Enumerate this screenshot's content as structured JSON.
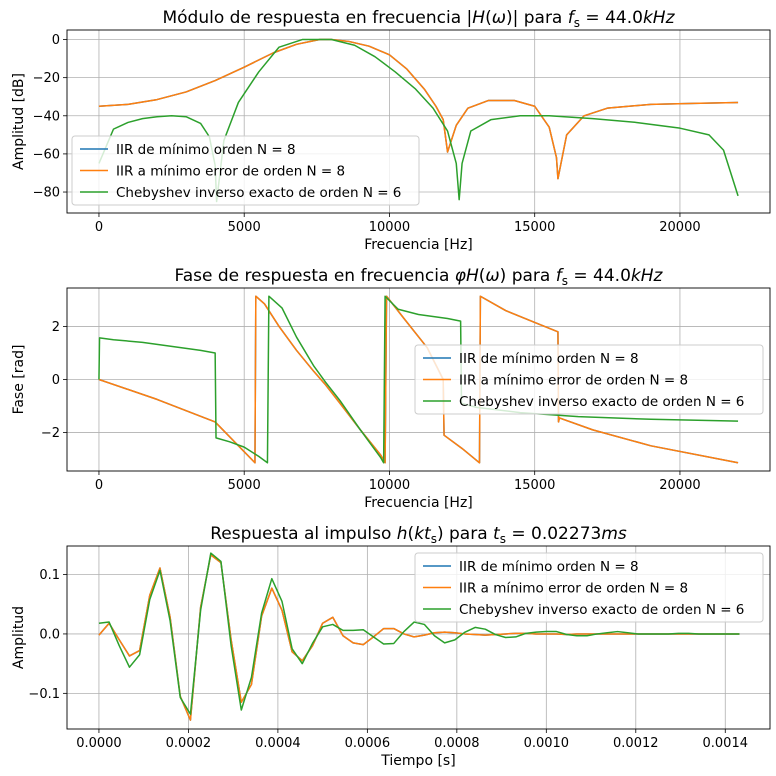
{
  "colors": {
    "blue": "#1f77b4",
    "orange": "#ff7f0e",
    "green": "#2ca02c",
    "grid": "#b0b0b0"
  },
  "series_names": [
    "IIR de mínimo orden N = 8",
    "IIR a mínimo error de orden N = 8",
    "Chebyshev inverso exacto de orden N = 6"
  ],
  "chart_data": [
    {
      "type": "line",
      "title": "Módulo de respuesta en frecuencia |H(ω)| para f_s = 44.0kHz",
      "title_parts": [
        "Módulo de respuesta en frecuencia |",
        "H",
        "(",
        "ω",
        ")| para ",
        "f",
        "s",
        " = 44.0",
        "kHz"
      ],
      "xlabel": "Frecuencia [Hz]",
      "ylabel": "Amplitud [dB]",
      "xlim": [
        -1100,
        23100
      ],
      "ylim": [
        -91,
        5
      ],
      "xticks": [
        0,
        5000,
        10000,
        15000,
        20000
      ],
      "xtick_labels": [
        "0",
        "5000",
        "10000",
        "15000",
        "20000"
      ],
      "yticks": [
        0,
        -20,
        -40,
        -60,
        -80
      ],
      "ytick_labels": [
        "0",
        "−20",
        "−40",
        "−60",
        "−80"
      ],
      "grid": true,
      "legend_location": "lower-left",
      "series": [
        {
          "name": "IIR de mínimo orden N = 8",
          "color": "blue",
          "x": [
            0,
            1000,
            2000,
            3000,
            4000,
            5000,
            6000,
            6800,
            7600,
            8000,
            8600,
            9300,
            10000,
            10600,
            11200,
            11600,
            11850,
            12000,
            12300,
            12700,
            13400,
            14300,
            15000,
            15500,
            15750,
            15800,
            16100,
            16700,
            17500,
            19000,
            20500,
            22000
          ],
          "y": [
            -35,
            -34,
            -31.5,
            -27.5,
            -21.5,
            -14.5,
            -7,
            -2.5,
            0,
            0,
            -1,
            -3.5,
            -8,
            -15.5,
            -26,
            -35,
            -42,
            -59,
            -45,
            -36,
            -32,
            -32,
            -35,
            -46,
            -62,
            -73,
            -50,
            -40,
            -36,
            -34,
            -33.5,
            -33
          ]
        },
        {
          "name": "IIR a mínimo error de orden N = 8",
          "color": "orange",
          "x": [
            0,
            1000,
            2000,
            3000,
            4000,
            5000,
            6000,
            6800,
            7600,
            8000,
            8600,
            9300,
            10000,
            10600,
            11200,
            11600,
            11850,
            12000,
            12300,
            12700,
            13400,
            14300,
            15000,
            15500,
            15750,
            15800,
            16100,
            16700,
            17500,
            19000,
            20500,
            22000
          ],
          "y": [
            -35,
            -34,
            -31.5,
            -27.5,
            -21.5,
            -14.5,
            -7,
            -2.5,
            0,
            0,
            -1,
            -3.5,
            -8,
            -15.5,
            -26,
            -35,
            -42,
            -59,
            -45,
            -36,
            -32,
            -32,
            -35,
            -46,
            -62,
            -73,
            -50,
            -40,
            -36,
            -34,
            -33.5,
            -33
          ]
        },
        {
          "name": "Chebyshev inverso exacto de orden N = 6",
          "color": "green",
          "x": [
            0,
            500,
            1000,
            1500,
            2000,
            2500,
            3000,
            3500,
            3800,
            4000,
            4050,
            4300,
            4800,
            5500,
            6200,
            7000,
            8000,
            8800,
            9500,
            10200,
            10900,
            11500,
            12000,
            12300,
            12400,
            12500,
            12800,
            13500,
            14500,
            15500,
            17000,
            18500,
            20000,
            21000,
            21500,
            22000
          ],
          "y": [
            -65,
            -47,
            -43.5,
            -41.5,
            -40.5,
            -40,
            -40.5,
            -44,
            -51,
            -66,
            -85,
            -53,
            -33,
            -17,
            -4,
            0,
            0,
            -3,
            -9,
            -17,
            -26,
            -36,
            -48,
            -65,
            -84,
            -65,
            -48,
            -42,
            -40,
            -40,
            -41.5,
            -43.5,
            -46.5,
            -50,
            -58,
            -82
          ]
        }
      ]
    },
    {
      "type": "line",
      "title": "Fase de respuesta en frecuencia φH(ω) para f_s = 44.0kHz",
      "title_parts": [
        "Fase de respuesta en frecuencia ",
        "φH",
        "(",
        "ω",
        ") para ",
        "f",
        "s",
        " = 44.0",
        "kHz"
      ],
      "xlabel": "Frecuencia [Hz]",
      "ylabel": "Fase [rad]",
      "xlim": [
        -1100,
        23100
      ],
      "ylim": [
        -3.45,
        3.45
      ],
      "xticks": [
        0,
        5000,
        10000,
        15000,
        20000
      ],
      "xtick_labels": [
        "0",
        "5000",
        "10000",
        "15000",
        "20000"
      ],
      "yticks": [
        2,
        0,
        -2
      ],
      "ytick_labels": [
        "2",
        "0",
        "−2"
      ],
      "grid": true,
      "legend_location": "center-right",
      "series": [
        {
          "name": "IIR de mínimo orden N = 8",
          "color": "blue",
          "x": [
            0,
            2000,
            4000,
            5370,
            5400,
            5700,
            6200,
            6800,
            7400,
            7800,
            8300,
            9000,
            9700,
            9850,
            9900,
            10500,
            11300,
            11850,
            11880,
            12500,
            13100,
            13130,
            14000,
            15000,
            15800,
            15820,
            15850,
            17000,
            19000,
            22000
          ],
          "y": [
            0,
            -0.75,
            -1.6,
            -3.14,
            3.14,
            2.85,
            2.0,
            1.1,
            0.3,
            -0.2,
            -0.9,
            -1.9,
            -2.85,
            -3.14,
            3.14,
            2.3,
            1.2,
            0.0,
            -2.1,
            -2.6,
            -3.14,
            3.14,
            2.6,
            2.15,
            1.8,
            -1.6,
            -1.45,
            -1.9,
            -2.5,
            -3.14
          ]
        },
        {
          "name": "IIR a mínimo error de orden N = 8",
          "color": "orange",
          "x": [
            0,
            2000,
            4000,
            5370,
            5400,
            5700,
            6200,
            6800,
            7400,
            7800,
            8300,
            9000,
            9700,
            9850,
            9900,
            10500,
            11300,
            11850,
            11880,
            12500,
            13100,
            13130,
            14000,
            15000,
            15800,
            15820,
            15850,
            17000,
            19000,
            22000
          ],
          "y": [
            0,
            -0.75,
            -1.6,
            -3.14,
            3.14,
            2.85,
            2.0,
            1.1,
            0.3,
            -0.2,
            -0.9,
            -1.9,
            -2.85,
            -3.14,
            3.14,
            2.3,
            1.2,
            0.0,
            -2.1,
            -2.6,
            -3.14,
            3.14,
            2.6,
            2.15,
            1.8,
            -1.6,
            -1.45,
            -1.9,
            -2.5,
            -3.14
          ]
        },
        {
          "name": "Chebyshev inverso exacto de orden N = 6",
          "color": "green",
          "x": [
            0,
            20,
            500,
            1500,
            2500,
            3500,
            4000,
            4030,
            4500,
            5000,
            5500,
            5800,
            5850,
            6300,
            6800,
            7400,
            7800,
            8300,
            9000,
            9700,
            9800,
            9850,
            10300,
            11000,
            12000,
            12450,
            12480,
            13000,
            14500,
            16500,
            19000,
            22000
          ],
          "y": [
            0,
            1.57,
            1.5,
            1.4,
            1.25,
            1.1,
            1.0,
            -2.2,
            -2.35,
            -2.55,
            -2.9,
            -3.14,
            3.14,
            2.7,
            1.6,
            0.5,
            -0.1,
            -0.8,
            -1.9,
            -2.95,
            -3.14,
            3.14,
            2.65,
            2.45,
            2.3,
            2.2,
            -0.9,
            -1.05,
            -1.25,
            -1.4,
            -1.5,
            -1.57
          ]
        }
      ]
    },
    {
      "type": "line",
      "title": "Respuesta al impulso h(kt_s) para t_s = 0.02273ms",
      "title_parts": [
        "Respuesta al impulso ",
        "h",
        "(",
        "kt",
        "s",
        ") para ",
        "t",
        "s",
        " = 0.02273",
        "ms"
      ],
      "xlabel": "Tiempo [s]",
      "ylabel": "Amplitud",
      "xlim": [
        -7.14e-05,
        0.0015
      ],
      "ylim": [
        -0.16,
        0.148
      ],
      "xticks": [
        0,
        0.0002,
        0.0004,
        0.0006,
        0.0008,
        0.001,
        0.0012,
        0.0014
      ],
      "xtick_labels": [
        "0.0000",
        "0.0002",
        "0.0004",
        "0.0006",
        "0.0008",
        "0.0010",
        "0.0012",
        "0.0014"
      ],
      "yticks": [
        0.1,
        0,
        -0.1
      ],
      "ytick_labels": [
        "0.1",
        "0.0",
        "−0.1"
      ],
      "grid": true,
      "legend_location": "upper-right",
      "series": [
        {
          "name": "IIR de mínimo orden N = 8",
          "color": "blue",
          "x": [
            0,
            2.27e-05,
            4.55e-05,
            6.82e-05,
            9.09e-05,
            0.0001136,
            0.0001364,
            0.0001591,
            0.0001818,
            0.0002045,
            0.0002273,
            0.00025,
            0.0002727,
            0.0002955,
            0.0003182,
            0.0003409,
            0.0003636,
            0.0003864,
            0.0004091,
            0.0004318,
            0.0004545,
            0.0004773,
            0.0005,
            0.0005227,
            0.0005455,
            0.0005682,
            0.0005909,
            0.0006136,
            0.0006364,
            0.0006591,
            0.0006818,
            0.0007045,
            0.0007273,
            0.00075,
            0.0007727,
            0.0007955,
            0.0008182,
            0.0008409,
            0.0008636,
            0.0008864,
            0.0009091,
            0.0009318,
            0.0009545,
            0.0009773,
            0.001,
            0.0010227,
            0.0010455,
            0.0010682,
            0.0010909,
            0.0011136,
            0.0011364,
            0.0011591,
            0.0011818,
            0.0012045,
            0.0012273,
            0.00125,
            0.0012727,
            0.0012955,
            0.0013182,
            0.0013409,
            0.0013636,
            0.0013864,
            0.0014091,
            0.0014318
          ],
          "y": [
            -0.002,
            0.018,
            -0.01,
            -0.037,
            -0.028,
            0.065,
            0.111,
            0.028,
            -0.105,
            -0.145,
            0.045,
            0.133,
            0.12,
            -0.01,
            -0.115,
            -0.085,
            0.03,
            0.077,
            0.04,
            -0.03,
            -0.045,
            -0.02,
            0.018,
            0.028,
            -0.003,
            -0.015,
            -0.018,
            -0.005,
            0.009,
            0.009,
            0.0,
            -0.005,
            -0.002,
            0.002,
            0.003,
            0.002,
            0.0,
            -0.001,
            -0.002,
            -0.001,
            0.0,
            0.001,
            0.001,
            0.0,
            0.0,
            0.0,
            -0.001,
            0.0,
            0.0,
            0.0,
            0.0,
            0.0,
            0.0,
            0.0,
            0.0,
            0.0,
            0.0,
            0.0,
            0.0,
            0.0,
            0.0,
            0.0,
            0.0,
            0.0
          ]
        },
        {
          "name": "IIR a mínimo error de orden N = 8",
          "color": "orange",
          "x": [
            0,
            2.27e-05,
            4.55e-05,
            6.82e-05,
            9.09e-05,
            0.0001136,
            0.0001364,
            0.0001591,
            0.0001818,
            0.0002045,
            0.0002273,
            0.00025,
            0.0002727,
            0.0002955,
            0.0003182,
            0.0003409,
            0.0003636,
            0.0003864,
            0.0004091,
            0.0004318,
            0.0004545,
            0.0004773,
            0.0005,
            0.0005227,
            0.0005455,
            0.0005682,
            0.0005909,
            0.0006136,
            0.0006364,
            0.0006591,
            0.0006818,
            0.0007045,
            0.0007273,
            0.00075,
            0.0007727,
            0.0007955,
            0.0008182,
            0.0008409,
            0.0008636,
            0.0008864,
            0.0009091,
            0.0009318,
            0.0009545,
            0.0009773,
            0.001,
            0.0010227,
            0.0010455,
            0.0010682,
            0.0010909,
            0.0011136,
            0.0011364,
            0.0011591,
            0.0011818,
            0.0012045,
            0.0012273,
            0.00125,
            0.0012727,
            0.0012955,
            0.0013182,
            0.0013409,
            0.0013636,
            0.0013864,
            0.0014091,
            0.0014318
          ],
          "y": [
            -0.002,
            0.018,
            -0.01,
            -0.037,
            -0.028,
            0.065,
            0.111,
            0.028,
            -0.105,
            -0.145,
            0.045,
            0.133,
            0.12,
            -0.01,
            -0.115,
            -0.085,
            0.03,
            0.077,
            0.04,
            -0.03,
            -0.045,
            -0.02,
            0.018,
            0.028,
            -0.003,
            -0.015,
            -0.018,
            -0.005,
            0.009,
            0.009,
            0.0,
            -0.005,
            -0.002,
            0.002,
            0.003,
            0.002,
            0.0,
            -0.001,
            -0.002,
            -0.001,
            0.0,
            0.001,
            0.001,
            0.0,
            0.0,
            0.0,
            -0.001,
            0.0,
            0.0,
            0.0,
            0.0,
            0.0,
            0.0,
            0.0,
            0.0,
            0.0,
            0.0,
            0.0,
            0.0,
            0.0,
            0.0,
            0.0,
            0.0,
            0.0
          ]
        },
        {
          "name": "Chebyshev inverso exacto de orden N = 6",
          "color": "green",
          "x": [
            0,
            2.27e-05,
            4.55e-05,
            6.82e-05,
            9.09e-05,
            0.0001136,
            0.0001364,
            0.0001591,
            0.0001818,
            0.0002045,
            0.0002273,
            0.00025,
            0.0002727,
            0.0002955,
            0.0003182,
            0.0003409,
            0.0003636,
            0.0003864,
            0.0004091,
            0.0004318,
            0.0004545,
            0.0004773,
            0.0005,
            0.0005227,
            0.0005455,
            0.0005682,
            0.0005909,
            0.0006136,
            0.0006364,
            0.0006591,
            0.0006818,
            0.0007045,
            0.0007273,
            0.00075,
            0.0007727,
            0.0007955,
            0.0008182,
            0.0008409,
            0.0008636,
            0.0008864,
            0.0009091,
            0.0009318,
            0.0009545,
            0.0009773,
            0.001,
            0.0010227,
            0.0010455,
            0.0010682,
            0.0010909,
            0.0011136,
            0.0011364,
            0.0011591,
            0.0011818,
            0.0012045,
            0.0012273,
            0.00125,
            0.0012727,
            0.0012955,
            0.0013182,
            0.0013409,
            0.0013636,
            0.0013864,
            0.0014091,
            0.0014318
          ],
          "y": [
            0.018,
            0.02,
            -0.02,
            -0.056,
            -0.035,
            0.058,
            0.107,
            0.022,
            -0.107,
            -0.135,
            0.04,
            0.136,
            0.122,
            -0.02,
            -0.128,
            -0.073,
            0.035,
            0.093,
            0.055,
            -0.025,
            -0.05,
            -0.016,
            0.012,
            0.016,
            0.006,
            0.006,
            0.007,
            -0.005,
            -0.017,
            -0.016,
            0.004,
            0.02,
            0.016,
            -0.003,
            -0.015,
            -0.01,
            0.003,
            0.011,
            0.008,
            -0.001,
            -0.006,
            -0.005,
            0.001,
            0.003,
            0.004,
            0.004,
            -0.001,
            -0.003,
            -0.003,
            0.0,
            0.002,
            0.004,
            0.002,
            0.0,
            0.0,
            0.0,
            0.0,
            0.001,
            0.001,
            0.0,
            0.0,
            0.0,
            0.0,
            0.0
          ]
        }
      ]
    }
  ]
}
